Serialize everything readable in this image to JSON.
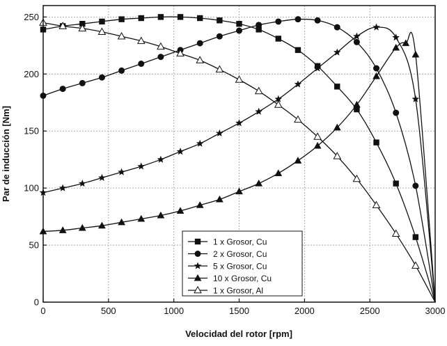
{
  "chart_data": {
    "type": "line",
    "title": "",
    "xlabel": "Velocidad del rotor [rpm]",
    "ylabel": "Par de inducción [Nm]",
    "xlim": [
      0,
      3000
    ],
    "ylim": [
      0,
      260
    ],
    "xticks": [
      "0",
      "500",
      "1000",
      "1500",
      "2000",
      "2500",
      "3000"
    ],
    "yticks": [
      "0",
      "50",
      "100",
      "150",
      "200",
      "250"
    ],
    "grid": true,
    "legend_position": "bottom-center",
    "series": [
      {
        "name": "1 x Grosor,  Cu",
        "marker": "square",
        "x": [
          0,
          150,
          300,
          450,
          600,
          750,
          900,
          1050,
          1200,
          1350,
          1500,
          1650,
          1800,
          1950,
          2100,
          2250,
          2400,
          2550,
          2700,
          2850,
          3000
        ],
        "y": [
          239,
          242,
          244,
          246,
          248,
          249,
          250,
          250,
          249,
          247,
          244,
          239,
          231,
          221,
          207,
          189,
          169,
          140,
          104,
          57,
          0
        ]
      },
      {
        "name": "2 x Grosor,  Cu",
        "marker": "circle",
        "x": [
          0,
          150,
          300,
          450,
          600,
          750,
          900,
          1050,
          1200,
          1350,
          1500,
          1650,
          1800,
          1950,
          2100,
          2250,
          2400,
          2550,
          2700,
          2850,
          3000
        ],
        "y": [
          181,
          187,
          192,
          197,
          203,
          209,
          215,
          221,
          227,
          233,
          238,
          243,
          246,
          248,
          247,
          241,
          228,
          205,
          166,
          102,
          0
        ]
      },
      {
        "name": "5 x Grosor,  Cu",
        "marker": "star",
        "x": [
          0,
          150,
          300,
          450,
          600,
          750,
          900,
          1050,
          1200,
          1350,
          1500,
          1650,
          1800,
          1950,
          2100,
          2250,
          2400,
          2550,
          2700,
          2850,
          3000
        ],
        "y": [
          96,
          100,
          104,
          109,
          114,
          119,
          125,
          132,
          139,
          148,
          157,
          167,
          178,
          191,
          205,
          219,
          233,
          241,
          232,
          178,
          0
        ]
      },
      {
        "name": "10 x Grosor,  Cu",
        "marker": "triangle-filled",
        "x": [
          0,
          150,
          300,
          450,
          600,
          750,
          900,
          1050,
          1200,
          1350,
          1500,
          1650,
          1800,
          1950,
          2100,
          2250,
          2400,
          2550,
          2700,
          2775,
          2850,
          3000
        ],
        "y": [
          62,
          63,
          65,
          67,
          70,
          73,
          76,
          80,
          85,
          90,
          97,
          104,
          113,
          124,
          137,
          153,
          173,
          198,
          223,
          227,
          217,
          0
        ]
      },
      {
        "name": "1 x Grosor,  Al",
        "marker": "triangle-open",
        "x": [
          0,
          150,
          300,
          450,
          600,
          750,
          900,
          1050,
          1200,
          1350,
          1500,
          1650,
          1800,
          1950,
          2100,
          2250,
          2400,
          2550,
          2700,
          2850,
          3000
        ],
        "y": [
          245,
          242,
          240,
          237,
          233,
          229,
          224,
          218,
          212,
          204,
          195,
          185,
          173,
          160,
          145,
          128,
          108,
          85,
          60,
          32,
          0
        ]
      }
    ]
  }
}
